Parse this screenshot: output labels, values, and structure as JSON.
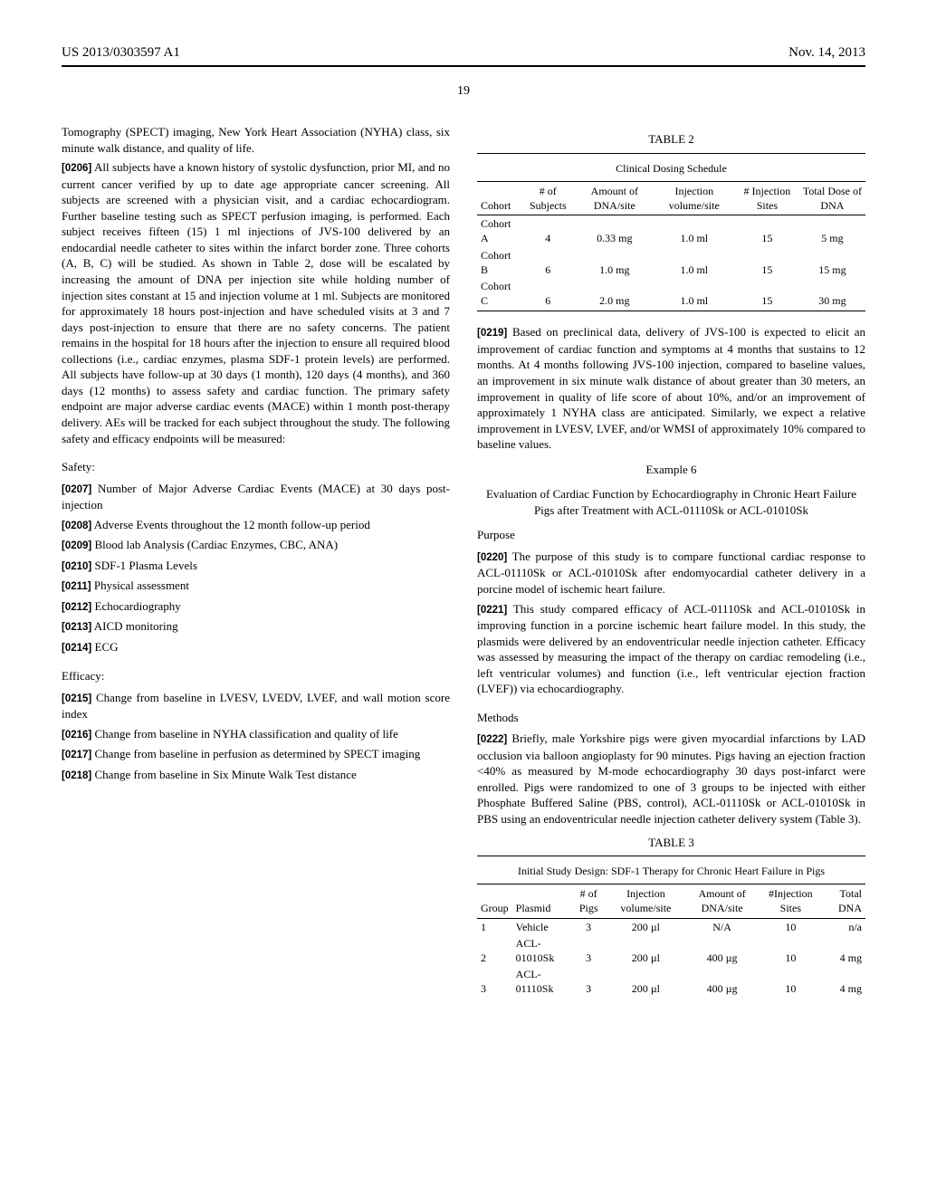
{
  "header": {
    "left": "US 2013/0303597 A1",
    "right": "Nov. 14, 2013"
  },
  "page_number": "19",
  "left_col": {
    "p_cont": "Tomography (SPECT) imaging, New York Heart Association (NYHA) class, six minute walk distance, and quality of life.",
    "p0206_num": "[0206]",
    "p0206": " All subjects have a known history of systolic dysfunction, prior MI, and no current cancer verified by up to date age appropriate cancer screening. All subjects are screened with a physician visit, and a cardiac echocardiogram. Further baseline testing such as SPECT perfusion imaging, is performed. Each subject receives fifteen (15) 1 ml injections of JVS-100 delivered by an endocardial needle catheter to sites within the infarct border zone. Three cohorts (A, B, C) will be studied. As shown in Table 2, dose will be escalated by increasing the amount of DNA per injection site while holding number of injection sites constant at 15 and injection volume at 1 ml. Subjects are monitored for approximately 18 hours post-injection and have scheduled visits at 3 and 7 days post-injection to ensure that there are no safety concerns. The patient remains in the hospital for 18 hours after the injection to ensure all required blood collections (i.e., cardiac enzymes, plasma SDF-1 protein levels) are performed. All subjects have follow-up at 30 days (1 month), 120 days (4 months), and 360 days (12 months) to assess safety and cardiac function. The primary safety endpoint are major adverse cardiac events (MACE) within 1 month post-therapy delivery. AEs will be tracked for each subject throughout the study. The following safety and efficacy endpoints will be measured:",
    "safety_head": "Safety:",
    "p0207_num": "[0207]",
    "p0207": " Number of Major Adverse Cardiac Events (MACE) at 30 days post-injection",
    "p0208_num": "[0208]",
    "p0208": " Adverse Events throughout the 12 month follow-up period",
    "p0209_num": "[0209]",
    "p0209": " Blood lab Analysis (Cardiac Enzymes, CBC, ANA)",
    "p0210_num": "[0210]",
    "p0210": " SDF-1 Plasma Levels",
    "p0211_num": "[0211]",
    "p0211": " Physical assessment",
    "p0212_num": "[0212]",
    "p0212": " Echocardiography",
    "p0213_num": "[0213]",
    "p0213": " AICD monitoring",
    "p0214_num": "[0214]",
    "p0214": " ECG",
    "efficacy_head": "Efficacy:",
    "p0215_num": "[0215]",
    "p0215": " Change from baseline in LVESV, LVEDV, LVEF, and wall motion score index",
    "p0216_num": "[0216]",
    "p0216": " Change from baseline in NYHA classification and quality of life",
    "p0217_num": "[0217]",
    "p0217": " Change from baseline in perfusion as determined by SPECT imaging",
    "p0218_num": "[0218]",
    "p0218": " Change from baseline in Six Minute Walk Test distance"
  },
  "right_col": {
    "table2": {
      "label": "TABLE 2",
      "caption": "Clinical Dosing Schedule",
      "columns": [
        "Cohort",
        "# of Subjects",
        "Amount of DNA/site",
        "Injection volume/site",
        "# Injection Sites",
        "Total Dose of DNA"
      ],
      "rows": [
        [
          "Cohort A",
          "4",
          "0.33 mg",
          "1.0 ml",
          "15",
          "5 mg"
        ],
        [
          "Cohort B",
          "6",
          "1.0 mg",
          "1.0 ml",
          "15",
          "15 mg"
        ],
        [
          "Cohort C",
          "6",
          "2.0 mg",
          "1.0 ml",
          "15",
          "30 mg"
        ]
      ]
    },
    "p0219_num": "[0219]",
    "p0219": " Based on preclinical data, delivery of JVS-100 is expected to elicit an improvement of cardiac function and symptoms at 4 months that sustains to 12 months. At 4 months following JVS-100 injection, compared to baseline values, an improvement in six minute walk distance of about greater than 30 meters, an improvement in quality of life score of about 10%, and/or an improvement of approximately 1 NYHA class are anticipated. Similarly, we expect a relative improvement in LVESV, LVEF, and/or WMSI of approximately 10% compared to baseline values.",
    "example6_label": "Example 6",
    "example6_title": "Evaluation of Cardiac Function by Echocardiography in Chronic Heart Failure Pigs after Treatment with ACL-01110Sk or ACL-01010Sk",
    "purpose_head": "Purpose",
    "p0220_num": "[0220]",
    "p0220": " The purpose of this study is to compare functional cardiac response to ACL-01110Sk or ACL-01010Sk after endomyocardial catheter delivery in a porcine model of ischemic heart failure.",
    "p0221_num": "[0221]",
    "p0221": " This study compared efficacy of ACL-01110Sk and ACL-01010Sk in improving function in a porcine ischemic heart failure model. In this study, the plasmids were delivered by an endoventricular needle injection catheter. Efficacy was assessed by measuring the impact of the therapy on cardiac remodeling (i.e., left ventricular volumes) and function (i.e., left ventricular ejection fraction (LVEF)) via echocardiography.",
    "methods_head": "Methods",
    "p0222_num": "[0222]",
    "p0222": " Briefly, male Yorkshire pigs were given myocardial infarctions by LAD occlusion via balloon angioplasty for 90 minutes. Pigs having an ejection fraction <40% as measured by M-mode echocardiography 30 days post-infarct were enrolled. Pigs were randomized to one of 3 groups to be injected with either Phosphate Buffered Saline (PBS, control), ACL-01110Sk or ACL-01010Sk in PBS using an endoventricular needle injection catheter delivery system (Table 3).",
    "table3": {
      "label": "TABLE 3",
      "caption": "Initial Study Design: SDF-1 Therapy for Chronic Heart Failure in Pigs",
      "columns": [
        "Group",
        "Plasmid",
        "# of Pigs",
        "Injection volume/site",
        "Amount of DNA/site",
        "#Injection Sites",
        "Total DNA"
      ],
      "rows": [
        [
          "1",
          "Vehicle",
          "3",
          "200 µl",
          "N/A",
          "10",
          "n/a"
        ],
        [
          "2",
          "ACL-01010Sk",
          "3",
          "200 µl",
          "400 µg",
          "10",
          "4 mg"
        ],
        [
          "3",
          "ACL-01110Sk",
          "3",
          "200 µl",
          "400 µg",
          "10",
          "4 mg"
        ]
      ]
    }
  }
}
